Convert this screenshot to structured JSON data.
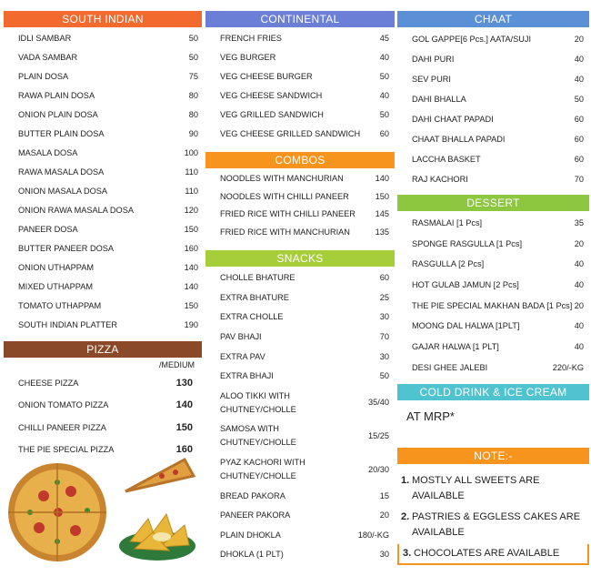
{
  "columns": [
    {
      "sections": [
        {
          "title": "SOUTH INDIAN",
          "color": "#f26a2e",
          "items": [
            {
              "name": "IDLI SAMBAR",
              "price": 50
            },
            {
              "name": "VADA SAMBAR",
              "price": 50
            },
            {
              "name": "PLAIN DOSA",
              "price": 75
            },
            {
              "name": "RAWA PLAIN DOSA",
              "price": 80
            },
            {
              "name": "ONION PLAIN DOSA",
              "price": 80
            },
            {
              "name": "BUTTER PLAIN DOSA",
              "price": 90
            },
            {
              "name": "MASALA DOSA",
              "price": 100
            },
            {
              "name": "RAWA MASALA DOSA",
              "price": 110
            },
            {
              "name": "ONION MASALA DOSA",
              "price": 110
            },
            {
              "name": "ONION RAWA MASALA DOSA",
              "price": 120
            },
            {
              "name": "PANEER DOSA",
              "price": 150
            },
            {
              "name": "BUTTER PANEER DOSA",
              "price": 160
            },
            {
              "name": "ONION UTHAPPAM",
              "price": 140
            },
            {
              "name": "MIXED UTHAPPAM",
              "price": 140
            },
            {
              "name": "TOMATO UTHAPPAM",
              "price": 150
            },
            {
              "name": "SOUTH INDIAN PLATTER",
              "price": 190
            }
          ]
        },
        {
          "title": "PIZZA",
          "color": "#8a4a2a",
          "size_label": "/MEDIUM",
          "items": [
            {
              "name": "CHEESE PIZZA",
              "price": 130
            },
            {
              "name": "ONION TOMATO PIZZA",
              "price": 140
            },
            {
              "name": "CHILLI PANEER PIZZA",
              "price": 150
            },
            {
              "name": "THE PIE SPECIAL PIZZA",
              "price": 160
            }
          ]
        }
      ]
    },
    {
      "sections": [
        {
          "title": "CONTINENTAL",
          "color": "#6b7fd6",
          "items": [
            {
              "name": "FRENCH FRIES",
              "price": 45
            },
            {
              "name": "VEG BURGER",
              "price": 40
            },
            {
              "name": "VEG CHEESE BURGER",
              "price": 50
            },
            {
              "name": "VEG CHEESE SANDWICH",
              "price": 40
            },
            {
              "name": "VEG GRILLED SANDWICH",
              "price": 50
            },
            {
              "name": "VEG CHEESE GRILLED SANDWICH",
              "price": 60
            }
          ]
        },
        {
          "title": "COMBOS",
          "color": "#f7941d",
          "items": [
            {
              "name": "NOODLES WITH MANCHURIAN",
              "price": 140
            },
            {
              "name": "NOODLES WITH CHILLI PANEER",
              "price": 150
            },
            {
              "name": "FRIED RICE WITH CHILLI PANEER",
              "price": 145
            },
            {
              "name": "FRIED RICE WITH MANCHURIAN",
              "price": 135
            }
          ]
        },
        {
          "title": "SNACKS",
          "color": "#a6ce39",
          "items": [
            {
              "name": "CHOLLE BHATURE",
              "price": 60
            },
            {
              "name": "EXTRA BHATURE",
              "price": 25
            },
            {
              "name": "EXTRA CHOLLE",
              "price": 30
            },
            {
              "name": "PAV BHAJI",
              "price": 70
            },
            {
              "name": "EXTRA PAV",
              "price": 30
            },
            {
              "name": "EXTRA BHAJI",
              "price": 50
            },
            {
              "name": "ALOO TIKKI WITH CHUTNEY/CHOLLE",
              "price": "35/40"
            },
            {
              "name": "SAMOSA WITH CHUTNEY/CHOLLE",
              "price": "15/25"
            },
            {
              "name": "PYAZ KACHORI WITH CHUTNEY/CHOLLE",
              "price": "20/30"
            },
            {
              "name": "BREAD PAKORA",
              "price": 15
            },
            {
              "name": "PANEER PAKORA",
              "price": 20
            },
            {
              "name": "PLAIN DHOKLA",
              "price": "180/-KG"
            },
            {
              "name": "DHOKLA (1 PLT)",
              "price": 30
            }
          ]
        }
      ]
    },
    {
      "sections": [
        {
          "title": "CHAAT",
          "color": "#5b8fd6",
          "items": [
            {
              "name": "GOL GAPPE[6 Pcs.] AATA/SUJI",
              "price": 20
            },
            {
              "name": "DAHI PURI",
              "price": 40
            },
            {
              "name": "SEV PURI",
              "price": 40
            },
            {
              "name": "DAHI BHALLA",
              "price": 50
            },
            {
              "name": "DAHI CHAAT PAPADI",
              "price": 60
            },
            {
              "name": "CHAAT BHALLA PAPADI",
              "price": 60
            },
            {
              "name": "LACCHA BASKET",
              "price": 60
            },
            {
              "name": "RAJ KACHORI",
              "price": 70
            }
          ]
        },
        {
          "title": "DESSERT",
          "color": "#8dc63f",
          "items": [
            {
              "name": "RASMALAI [1 Pcs]",
              "price": 35
            },
            {
              "name": "SPONGE RASGULLA [1 Pcs]",
              "price": 20
            },
            {
              "name": "RASGULLA [2 Pcs]",
              "price": 40
            },
            {
              "name": "HOT GULAB JAMUN [2 Pcs]",
              "price": 40
            },
            {
              "name": "THE PIE SPECIAL MAKHAN BADA [1 Pcs]",
              "price": 20
            },
            {
              "name": "MOONG DAL HALWA [1PLT]",
              "price": 40
            },
            {
              "name": "GAJAR HALWA [1 PLT]",
              "price": 40
            },
            {
              "name": "DESI GHEE JALEBI",
              "price": "220/-KG"
            }
          ]
        },
        {
          "title": "COLD DRINK & ICE CREAM",
          "color": "#4fc3d0",
          "text": "AT MRP*"
        },
        {
          "title": "NOTE:-",
          "color": "#f7941d",
          "notes": [
            {
              "number": "1.",
              "text": "MOSTLY ALL SWEETS ARE AVAILABLE"
            },
            {
              "number": "2.",
              "text": "PASTRIES & EGGLESS CAKES ARE AVAILABLE"
            },
            {
              "number": "3.",
              "text": "CHOCOLATES ARE AVAILABLE"
            }
          ]
        }
      ]
    }
  ]
}
